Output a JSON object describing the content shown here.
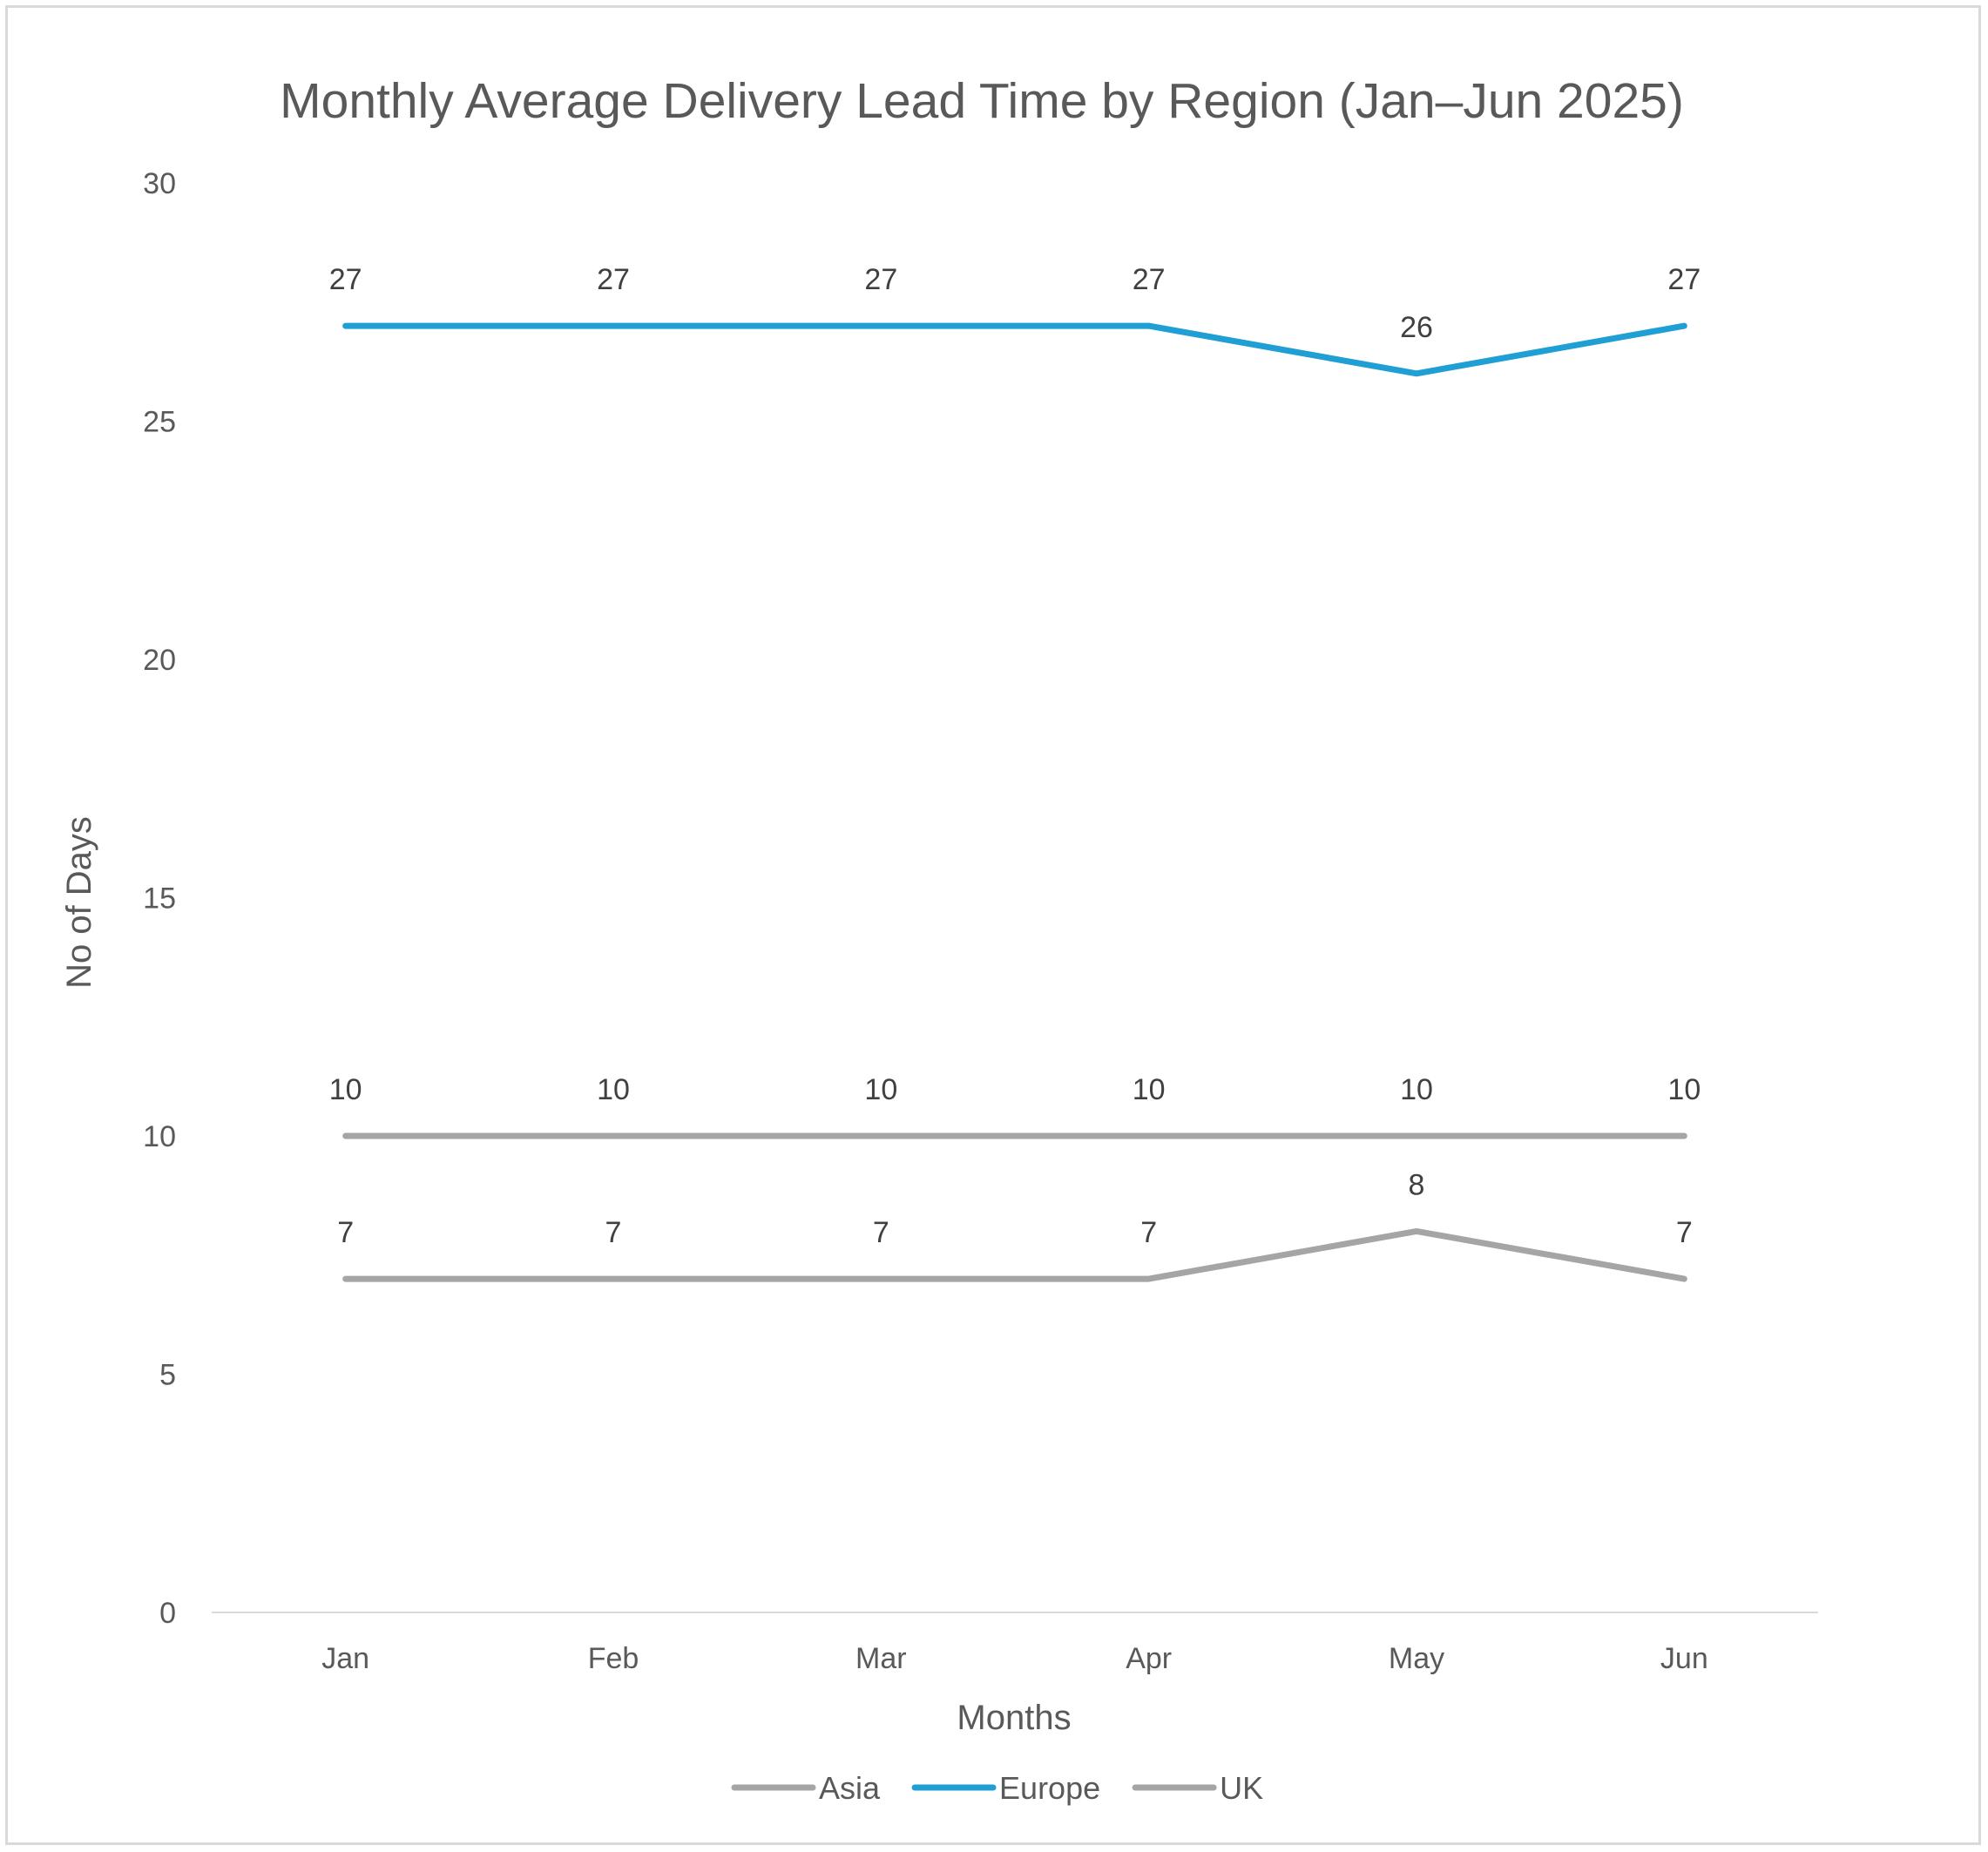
{
  "chart_data": {
    "type": "line",
    "title": "Monthly Average Delivery Lead Time by Region (Jan–Jun 2025)",
    "xlabel": "Months",
    "ylabel": "No of Days",
    "categories": [
      "Jan",
      "Feb",
      "Mar",
      "Apr",
      "May",
      "Jun"
    ],
    "ylim": [
      0,
      30
    ],
    "yticks": [
      0,
      5,
      10,
      15,
      20,
      25,
      30
    ],
    "grid": false,
    "legend_position": "bottom",
    "series": [
      {
        "name": "Asia",
        "color": "#a5a5a5",
        "values": [
          10,
          10,
          10,
          10,
          10,
          10
        ]
      },
      {
        "name": "Europe",
        "color": "#1f9fd4",
        "values": [
          27,
          27,
          27,
          27,
          26,
          27
        ]
      },
      {
        "name": "UK",
        "color": "#a5a5a5",
        "values": [
          7,
          7,
          7,
          7,
          8,
          7
        ]
      }
    ]
  }
}
